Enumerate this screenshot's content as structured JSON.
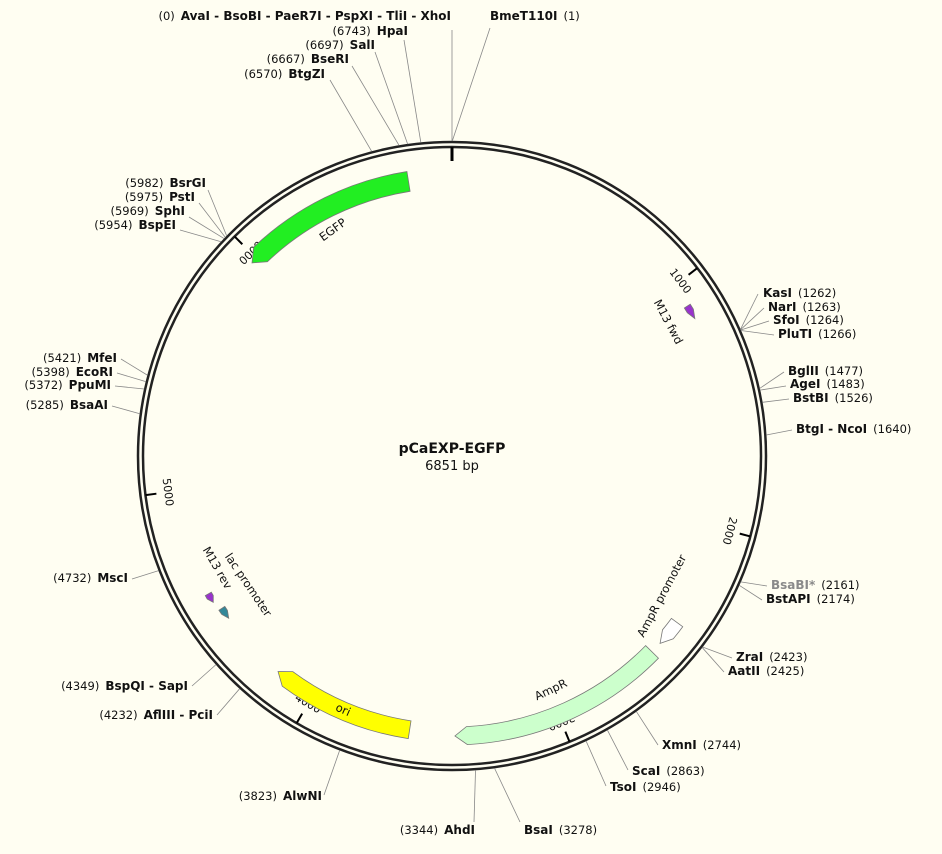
{
  "title": "pCaEXP-EGFP",
  "subtitle": "6851 bp",
  "sites": [
    {
      "name": "AvaI - BsoBI - PaeR7I - PspXI - TliI - XhoI",
      "position": "(0)"
    },
    {
      "name": "BmeT110I",
      "position": "(1)"
    },
    {
      "name": "HpaI",
      "position": "(6743)"
    },
    {
      "name": "SalI",
      "position": "(6697)"
    },
    {
      "name": "BseRI",
      "position": "(6667)"
    },
    {
      "name": "BtgZI",
      "position": "(6570)"
    },
    {
      "name": "BsrGI",
      "position": "(5982)"
    },
    {
      "name": "PstI",
      "position": "(5975)"
    },
    {
      "name": "SphI",
      "position": "(5969)"
    },
    {
      "name": "BspEI",
      "position": "(5954)"
    },
    {
      "name": "KasI",
      "position": "(1262)"
    },
    {
      "name": "NarI",
      "position": "(1263)"
    },
    {
      "name": "SfoI",
      "position": "(1264)"
    },
    {
      "name": "PluTI",
      "position": "(1266)"
    },
    {
      "name": "BglII",
      "position": "(1477)"
    },
    {
      "name": "AgeI",
      "position": "(1483)"
    },
    {
      "name": "BstBI",
      "position": "(1526)"
    },
    {
      "name": "BtgI - NcoI",
      "position": "(1640)"
    },
    {
      "name": "MfeI",
      "position": "(5421)"
    },
    {
      "name": "EcoRI",
      "position": "(5398)"
    },
    {
      "name": "PpuMI",
      "position": "(5372)"
    },
    {
      "name": "BsaAI",
      "position": "(5285)"
    },
    {
      "name": "MscI",
      "position": "(4732)"
    },
    {
      "name": "BsaBI*",
      "position": "(2161)",
      "color": "#8a8a8a"
    },
    {
      "name": "BstAPI",
      "position": "(2174)"
    },
    {
      "name": "BspQI - SapI",
      "position": "(4349)"
    },
    {
      "name": "AflIII - PciI",
      "position": "(4232)"
    },
    {
      "name": "ZraI",
      "position": "(2423)"
    },
    {
      "name": "AatII",
      "position": "(2425)"
    },
    {
      "name": "XmnI",
      "position": "(2744)"
    },
    {
      "name": "ScaI",
      "position": "(2863)"
    },
    {
      "name": "TsoI",
      "position": "(2946)"
    },
    {
      "name": "AlwNI",
      "position": "(3823)"
    },
    {
      "name": "BsaI",
      "position": "(3278)"
    },
    {
      "name": "AhdI",
      "position": "(3344)"
    }
  ],
  "features": [
    {
      "label": "EGFP",
      "color": "#22ee22"
    },
    {
      "label": "M13 fwd",
      "color": "#9933cc"
    },
    {
      "label": "AmpR promoter",
      "color": "#ffffff"
    },
    {
      "label": "AmpR",
      "color": "#ccffcc"
    },
    {
      "label": "ori",
      "color": "#ffff00"
    },
    {
      "label": "lac promoter",
      "color": "#338899"
    },
    {
      "label": "M13 rev",
      "color": "#9933cc"
    }
  ],
  "scale_ticks": [
    "1000",
    "2000",
    "3000",
    "4000",
    "5000",
    "6000"
  ]
}
